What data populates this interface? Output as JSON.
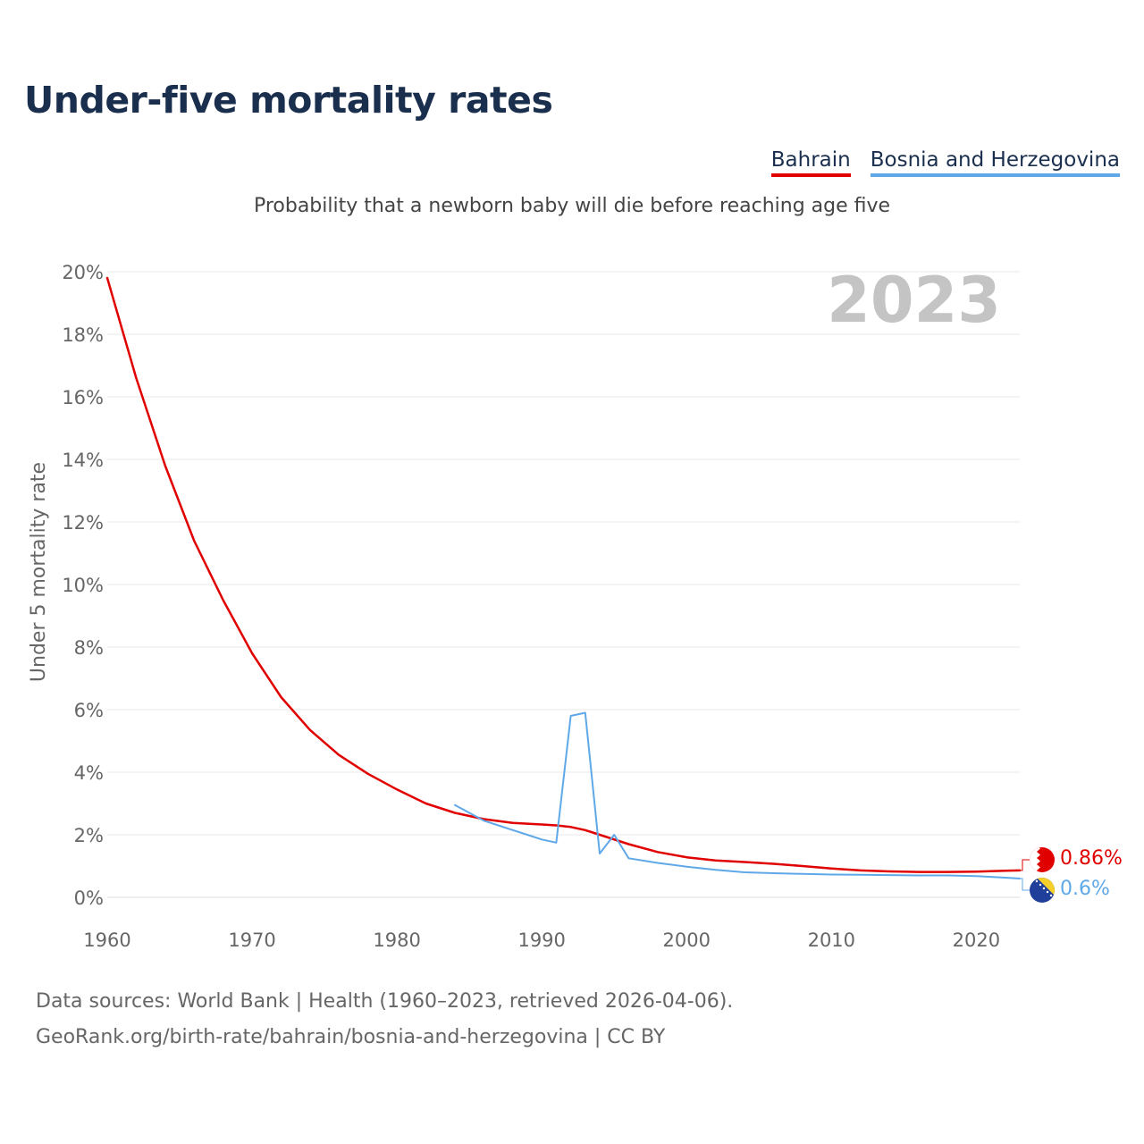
{
  "title": "Under-five mortality rates",
  "subtitle": "Probability that a newborn baby will die before reaching age five",
  "legend": [
    {
      "name": "Bahrain",
      "color": "#e00000"
    },
    {
      "name": "Bosnia and Herzegovina",
      "color": "#5fa8e8"
    }
  ],
  "year_watermark": "2023",
  "footer": {
    "line1": "Data sources: World Bank | Health (1960–2023, retrieved 2026-04-06).",
    "line2": "GeoRank.org/birth-rate/bahrain/bosnia-and-herzegovina | CC BY"
  },
  "chart_data": {
    "type": "line",
    "title": "Under-five mortality rates",
    "ylabel": "Under 5 mortality rate",
    "xlabel": "",
    "xlim": [
      1960,
      2023
    ],
    "ylim": [
      0,
      20
    ],
    "x_ticks": [
      1960,
      1970,
      1980,
      1990,
      2000,
      2010,
      2020
    ],
    "y_ticks": [
      0,
      2,
      4,
      6,
      8,
      10,
      12,
      14,
      16,
      18,
      20
    ],
    "y_tick_labels": [
      "0%",
      "2%",
      "4%",
      "6%",
      "8%",
      "10%",
      "12%",
      "14%",
      "16%",
      "18%",
      "20%"
    ],
    "grid": true,
    "series": [
      {
        "name": "Bahrain",
        "color": "#e00000",
        "end_label": "0.86%",
        "x": [
          1960,
          1962,
          1964,
          1966,
          1968,
          1970,
          1972,
          1974,
          1976,
          1978,
          1980,
          1982,
          1984,
          1986,
          1988,
          1990,
          1991,
          1992,
          1993,
          1994,
          1996,
          1998,
          2000,
          2002,
          2004,
          2006,
          2008,
          2010,
          2012,
          2014,
          2016,
          2018,
          2020,
          2022,
          2023
        ],
        "y": [
          19.8,
          16.6,
          13.8,
          11.4,
          9.5,
          7.8,
          6.4,
          5.35,
          4.55,
          3.95,
          3.45,
          3.0,
          2.7,
          2.5,
          2.38,
          2.33,
          2.3,
          2.25,
          2.15,
          2.0,
          1.7,
          1.45,
          1.28,
          1.18,
          1.13,
          1.07,
          1.0,
          0.92,
          0.86,
          0.83,
          0.81,
          0.81,
          0.82,
          0.85,
          0.86
        ]
      },
      {
        "name": "Bosnia and Herzegovina",
        "color": "#5fa8e8",
        "end_label": "0.6%",
        "x": [
          1984,
          1985,
          1986,
          1987,
          1988,
          1989,
          1990,
          1991,
          1992,
          1993,
          1994,
          1995,
          1996,
          1998,
          2000,
          2002,
          2004,
          2006,
          2008,
          2010,
          2012,
          2014,
          2016,
          2018,
          2020,
          2022,
          2023
        ],
        "y": [
          2.95,
          2.7,
          2.45,
          2.3,
          2.15,
          2.0,
          1.85,
          1.75,
          5.8,
          5.9,
          1.4,
          2.0,
          1.25,
          1.1,
          0.98,
          0.88,
          0.8,
          0.77,
          0.75,
          0.73,
          0.72,
          0.71,
          0.7,
          0.7,
          0.68,
          0.63,
          0.6
        ]
      }
    ]
  }
}
